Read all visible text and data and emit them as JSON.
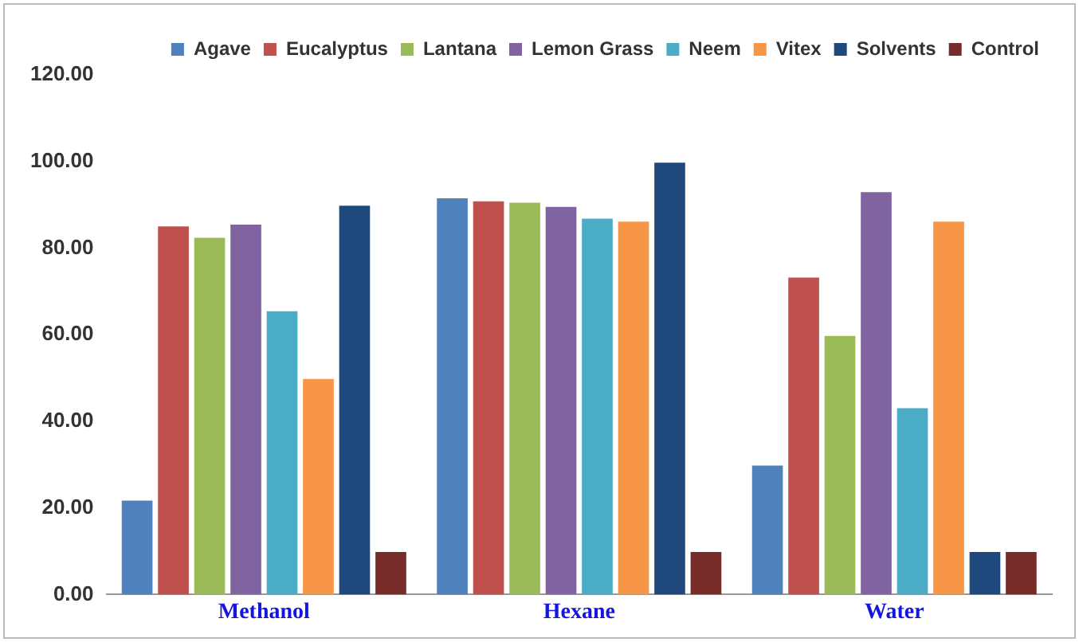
{
  "chart_data": {
    "type": "bar",
    "categories": [
      "Methanol",
      "Hexane",
      "Water"
    ],
    "series": [
      {
        "name": "Agave",
        "color": "#4f81bd",
        "values": [
          21.7,
          91.5,
          29.8
        ]
      },
      {
        "name": "Eucalyptus",
        "color": "#c0504d",
        "values": [
          85,
          90.8,
          73.2
        ]
      },
      {
        "name": "Lantana",
        "color": "#9bbb59",
        "values": [
          82.4,
          90.5,
          59.7
        ]
      },
      {
        "name": "Lemon Grass",
        "color": "#8064a2",
        "values": [
          85.4,
          89.5,
          92.9
        ]
      },
      {
        "name": "Neem",
        "color": "#4bacc6",
        "values": [
          65.4,
          86.8,
          43
        ]
      },
      {
        "name": "Vitex",
        "color": "#f79646",
        "values": [
          49.8,
          86.1,
          86.1
        ]
      },
      {
        "name": "Solvents",
        "color": "#1f497d",
        "values": [
          89.8,
          99.7,
          9.8
        ]
      },
      {
        "name": "Control",
        "color": "#772c2a",
        "values": [
          9.8,
          9.8,
          9.8
        ]
      }
    ],
    "ylim": [
      0,
      120
    ],
    "yticks": [
      {
        "value": 0,
        "label": "0.00"
      },
      {
        "value": 20,
        "label": "20.00"
      },
      {
        "value": 40,
        "label": "40.00"
      },
      {
        "value": 60,
        "label": "60.00"
      },
      {
        "value": 80,
        "label": "80.00"
      },
      {
        "value": 100,
        "label": "100.00"
      },
      {
        "value": 120,
        "label": "120.00"
      }
    ],
    "grid": false,
    "legend": "top right"
  }
}
